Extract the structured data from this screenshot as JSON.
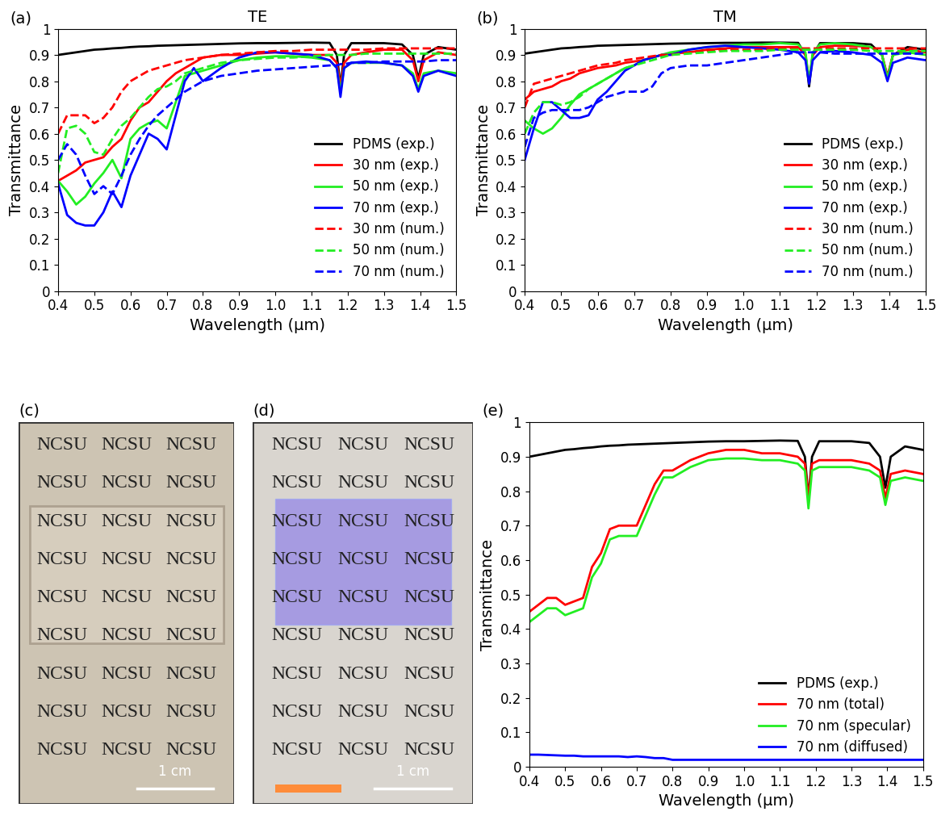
{
  "chart_data": [
    {
      "type": "line",
      "panel_label": "(a)",
      "title": "TE",
      "x_label": "Wavelength (μm)",
      "y_label": "Transmittance",
      "xlim": [
        0.4,
        1.5
      ],
      "ylim": [
        0,
        1
      ],
      "xticks": [
        0.4,
        0.5,
        0.6,
        0.7,
        0.8,
        0.9,
        1.0,
        1.1,
        1.2,
        1.3,
        1.4,
        1.5
      ],
      "yticks": [
        0,
        0.1,
        0.2,
        0.3,
        0.4,
        0.5,
        0.6,
        0.7,
        0.8,
        0.9,
        1
      ],
      "legend": "lower right",
      "x": [
        0.4,
        0.425,
        0.45,
        0.475,
        0.5,
        0.525,
        0.55,
        0.575,
        0.6,
        0.625,
        0.65,
        0.675,
        0.7,
        0.725,
        0.75,
        0.775,
        0.8,
        0.85,
        0.9,
        0.95,
        1.0,
        1.05,
        1.1,
        1.15,
        1.17,
        1.18,
        1.19,
        1.21,
        1.25,
        1.3,
        1.35,
        1.38,
        1.395,
        1.41,
        1.45,
        1.5
      ],
      "series": [
        {
          "name": "PDMS (exp.)",
          "color": "#000000",
          "line_style": "solid",
          "values": [
            0.9,
            0.905,
            0.91,
            0.915,
            0.92,
            0.922,
            0.925,
            0.927,
            0.93,
            0.932,
            0.933,
            0.935,
            0.936,
            0.937,
            0.938,
            0.939,
            0.94,
            0.942,
            0.944,
            0.945,
            0.945,
            0.946,
            0.947,
            0.946,
            0.9,
            0.78,
            0.9,
            0.945,
            0.945,
            0.945,
            0.94,
            0.9,
            0.81,
            0.9,
            0.93,
            0.92
          ]
        },
        {
          "name": "30 nm (exp.)",
          "color": "#ff0000",
          "line_style": "solid",
          "values": [
            0.42,
            0.44,
            0.46,
            0.49,
            0.5,
            0.51,
            0.55,
            0.58,
            0.65,
            0.7,
            0.72,
            0.76,
            0.8,
            0.83,
            0.85,
            0.87,
            0.89,
            0.9,
            0.9,
            0.905,
            0.91,
            0.905,
            0.9,
            0.9,
            0.87,
            0.78,
            0.87,
            0.9,
            0.91,
            0.92,
            0.92,
            0.88,
            0.8,
            0.88,
            0.91,
            0.9
          ]
        },
        {
          "name": "50 nm (exp.)",
          "color": "#22ee22",
          "line_style": "solid",
          "values": [
            0.42,
            0.38,
            0.33,
            0.36,
            0.41,
            0.45,
            0.5,
            0.43,
            0.58,
            0.62,
            0.64,
            0.65,
            0.62,
            0.72,
            0.82,
            0.83,
            0.84,
            0.86,
            0.88,
            0.89,
            0.895,
            0.895,
            0.89,
            0.88,
            0.85,
            0.76,
            0.85,
            0.87,
            0.87,
            0.87,
            0.86,
            0.83,
            0.77,
            0.83,
            0.84,
            0.83
          ]
        },
        {
          "name": "70 nm (exp.)",
          "color": "#0000ff",
          "line_style": "solid",
          "values": [
            0.41,
            0.29,
            0.26,
            0.25,
            0.25,
            0.3,
            0.38,
            0.32,
            0.44,
            0.52,
            0.6,
            0.58,
            0.54,
            0.67,
            0.8,
            0.85,
            0.8,
            0.85,
            0.89,
            0.91,
            0.91,
            0.905,
            0.9,
            0.88,
            0.85,
            0.74,
            0.85,
            0.87,
            0.875,
            0.87,
            0.86,
            0.82,
            0.76,
            0.82,
            0.84,
            0.82
          ]
        },
        {
          "name": "30 nm (num.)",
          "color": "#ff0000",
          "line_style": "dashed",
          "values": [
            0.6,
            0.67,
            0.67,
            0.67,
            0.64,
            0.66,
            0.7,
            0.76,
            0.8,
            0.82,
            0.84,
            0.85,
            0.86,
            0.87,
            0.88,
            0.885,
            0.89,
            0.9,
            0.905,
            0.91,
            0.915,
            0.915,
            0.92,
            0.92,
            0.92,
            0.92,
            0.92,
            0.92,
            0.92,
            0.925,
            0.925,
            0.925,
            0.925,
            0.925,
            0.925,
            0.925
          ]
        },
        {
          "name": "50 nm (num.)",
          "color": "#22ee22",
          "line_style": "dashed",
          "values": [
            0.45,
            0.62,
            0.63,
            0.6,
            0.53,
            0.52,
            0.58,
            0.63,
            0.66,
            0.7,
            0.74,
            0.77,
            0.78,
            0.8,
            0.83,
            0.84,
            0.85,
            0.87,
            0.88,
            0.885,
            0.89,
            0.89,
            0.895,
            0.9,
            0.9,
            0.9,
            0.9,
            0.9,
            0.905,
            0.905,
            0.905,
            0.905,
            0.905,
            0.905,
            0.905,
            0.905
          ]
        },
        {
          "name": "70 nm (num.)",
          "color": "#0000ff",
          "line_style": "dashed",
          "values": [
            0.5,
            0.56,
            0.52,
            0.44,
            0.37,
            0.4,
            0.37,
            0.44,
            0.52,
            0.58,
            0.63,
            0.67,
            0.7,
            0.73,
            0.76,
            0.78,
            0.8,
            0.82,
            0.83,
            0.84,
            0.845,
            0.85,
            0.855,
            0.86,
            0.86,
            0.865,
            0.865,
            0.87,
            0.87,
            0.875,
            0.875,
            0.875,
            0.875,
            0.875,
            0.88,
            0.88
          ]
        }
      ]
    },
    {
      "type": "line",
      "panel_label": "(b)",
      "title": "TM",
      "x_label": "Wavelength (μm)",
      "y_label": "Transmittance",
      "xlim": [
        0.4,
        1.5
      ],
      "ylim": [
        0,
        1
      ],
      "xticks": [
        0.4,
        0.5,
        0.6,
        0.7,
        0.8,
        0.9,
        1.0,
        1.1,
        1.2,
        1.3,
        1.4,
        1.5
      ],
      "yticks": [
        0,
        0.1,
        0.2,
        0.3,
        0.4,
        0.5,
        0.6,
        0.7,
        0.8,
        0.9,
        1
      ],
      "legend": "lower right",
      "x": [
        0.4,
        0.425,
        0.45,
        0.475,
        0.5,
        0.525,
        0.55,
        0.575,
        0.6,
        0.625,
        0.65,
        0.675,
        0.7,
        0.725,
        0.75,
        0.775,
        0.8,
        0.85,
        0.9,
        0.95,
        1.0,
        1.05,
        1.1,
        1.15,
        1.17,
        1.18,
        1.19,
        1.21,
        1.25,
        1.3,
        1.35,
        1.38,
        1.395,
        1.41,
        1.45,
        1.5
      ],
      "series": [
        {
          "name": "PDMS (exp.)",
          "color": "#000000",
          "line_style": "solid",
          "values": [
            0.905,
            0.91,
            0.915,
            0.92,
            0.925,
            0.927,
            0.93,
            0.932,
            0.935,
            0.936,
            0.937,
            0.938,
            0.939,
            0.94,
            0.941,
            0.942,
            0.943,
            0.944,
            0.945,
            0.946,
            0.946,
            0.947,
            0.947,
            0.946,
            0.9,
            0.78,
            0.9,
            0.945,
            0.945,
            0.945,
            0.94,
            0.9,
            0.81,
            0.9,
            0.93,
            0.92
          ]
        },
        {
          "name": "30 nm (exp.)",
          "color": "#ff0000",
          "line_style": "solid",
          "values": [
            0.73,
            0.76,
            0.77,
            0.78,
            0.8,
            0.81,
            0.83,
            0.84,
            0.85,
            0.855,
            0.86,
            0.87,
            0.875,
            0.88,
            0.89,
            0.9,
            0.905,
            0.91,
            0.92,
            0.925,
            0.93,
            0.93,
            0.93,
            0.93,
            0.9,
            0.8,
            0.9,
            0.93,
            0.935,
            0.935,
            0.93,
            0.9,
            0.82,
            0.9,
            0.92,
            0.91
          ]
        },
        {
          "name": "50 nm (exp.)",
          "color": "#22ee22",
          "line_style": "solid",
          "values": [
            0.65,
            0.62,
            0.6,
            0.62,
            0.66,
            0.71,
            0.75,
            0.77,
            0.79,
            0.81,
            0.83,
            0.85,
            0.86,
            0.88,
            0.89,
            0.9,
            0.91,
            0.92,
            0.93,
            0.935,
            0.94,
            0.94,
            0.945,
            0.94,
            0.91,
            0.8,
            0.91,
            0.94,
            0.945,
            0.94,
            0.93,
            0.9,
            0.81,
            0.9,
            0.91,
            0.9
          ]
        },
        {
          "name": "70 nm (exp.)",
          "color": "#0000ff",
          "line_style": "solid",
          "values": [
            0.5,
            0.62,
            0.72,
            0.72,
            0.69,
            0.66,
            0.66,
            0.67,
            0.73,
            0.76,
            0.8,
            0.84,
            0.86,
            0.88,
            0.89,
            0.9,
            0.9,
            0.92,
            0.93,
            0.935,
            0.93,
            0.925,
            0.92,
            0.91,
            0.88,
            0.79,
            0.88,
            0.91,
            0.915,
            0.91,
            0.9,
            0.87,
            0.8,
            0.87,
            0.89,
            0.88
          ]
        },
        {
          "name": "30 nm (num.)",
          "color": "#ff0000",
          "line_style": "dashed",
          "values": [
            0.7,
            0.79,
            0.8,
            0.81,
            0.82,
            0.83,
            0.84,
            0.85,
            0.86,
            0.865,
            0.87,
            0.88,
            0.885,
            0.89,
            0.895,
            0.9,
            0.9,
            0.91,
            0.915,
            0.92,
            0.92,
            0.92,
            0.925,
            0.925,
            0.925,
            0.925,
            0.925,
            0.925,
            0.925,
            0.925,
            0.925,
            0.925,
            0.925,
            0.925,
            0.925,
            0.925
          ]
        },
        {
          "name": "50 nm (num.)",
          "color": "#22ee22",
          "line_style": "dashed",
          "values": [
            0.6,
            0.68,
            0.72,
            0.72,
            0.71,
            0.72,
            0.74,
            0.77,
            0.79,
            0.81,
            0.83,
            0.85,
            0.86,
            0.87,
            0.88,
            0.89,
            0.9,
            0.905,
            0.91,
            0.915,
            0.915,
            0.915,
            0.92,
            0.92,
            0.92,
            0.92,
            0.92,
            0.92,
            0.92,
            0.92,
            0.915,
            0.915,
            0.915,
            0.915,
            0.915,
            0.915
          ]
        },
        {
          "name": "70 nm (num.)",
          "color": "#0000ff",
          "line_style": "dashed",
          "values": [
            0.55,
            0.66,
            0.68,
            0.69,
            0.69,
            0.69,
            0.69,
            0.7,
            0.72,
            0.74,
            0.75,
            0.76,
            0.76,
            0.76,
            0.78,
            0.83,
            0.85,
            0.86,
            0.86,
            0.87,
            0.88,
            0.89,
            0.9,
            0.91,
            0.91,
            0.91,
            0.91,
            0.91,
            0.905,
            0.905,
            0.905,
            0.905,
            0.905,
            0.905,
            0.905,
            0.905
          ]
        }
      ]
    },
    {
      "type": "line",
      "panel_label": "(e)",
      "x_label": "Wavelength (μm)",
      "y_label": "Transmittance",
      "xlim": [
        0.4,
        1.5
      ],
      "ylim": [
        0,
        1
      ],
      "xticks": [
        0.4,
        0.5,
        0.6,
        0.7,
        0.8,
        0.9,
        1.0,
        1.1,
        1.2,
        1.3,
        1.4,
        1.5
      ],
      "yticks": [
        0,
        0.1,
        0.2,
        0.3,
        0.4,
        0.5,
        0.6,
        0.7,
        0.8,
        0.9,
        1
      ],
      "legend": "lower right",
      "x": [
        0.4,
        0.425,
        0.45,
        0.475,
        0.5,
        0.525,
        0.55,
        0.575,
        0.6,
        0.625,
        0.65,
        0.675,
        0.7,
        0.725,
        0.75,
        0.775,
        0.8,
        0.85,
        0.9,
        0.95,
        1.0,
        1.05,
        1.1,
        1.15,
        1.17,
        1.18,
        1.19,
        1.21,
        1.25,
        1.3,
        1.35,
        1.38,
        1.395,
        1.41,
        1.45,
        1.5
      ],
      "series": [
        {
          "name": "PDMS (exp.)",
          "color": "#000000",
          "line_style": "solid",
          "values": [
            0.9,
            0.905,
            0.91,
            0.915,
            0.92,
            0.922,
            0.925,
            0.927,
            0.93,
            0.932,
            0.933,
            0.935,
            0.936,
            0.937,
            0.938,
            0.939,
            0.94,
            0.942,
            0.944,
            0.945,
            0.945,
            0.946,
            0.947,
            0.946,
            0.9,
            0.78,
            0.9,
            0.945,
            0.945,
            0.945,
            0.94,
            0.9,
            0.81,
            0.9,
            0.93,
            0.92
          ]
        },
        {
          "name": "70 nm (total)",
          "color": "#ff0000",
          "line_style": "solid",
          "values": [
            0.45,
            0.47,
            0.49,
            0.49,
            0.47,
            0.48,
            0.49,
            0.58,
            0.62,
            0.69,
            0.7,
            0.7,
            0.7,
            0.76,
            0.82,
            0.86,
            0.86,
            0.89,
            0.91,
            0.92,
            0.92,
            0.91,
            0.91,
            0.9,
            0.88,
            0.78,
            0.88,
            0.89,
            0.89,
            0.89,
            0.88,
            0.86,
            0.78,
            0.85,
            0.86,
            0.85
          ]
        },
        {
          "name": "70 nm (specular)",
          "color": "#22ee22",
          "line_style": "solid",
          "values": [
            0.42,
            0.44,
            0.46,
            0.46,
            0.44,
            0.45,
            0.46,
            0.55,
            0.59,
            0.66,
            0.67,
            0.67,
            0.67,
            0.73,
            0.79,
            0.84,
            0.84,
            0.87,
            0.89,
            0.895,
            0.895,
            0.89,
            0.89,
            0.88,
            0.86,
            0.75,
            0.86,
            0.87,
            0.87,
            0.87,
            0.86,
            0.84,
            0.76,
            0.83,
            0.84,
            0.83
          ]
        },
        {
          "name": "70 nm (diffused)",
          "color": "#0000ff",
          "line_style": "solid",
          "values": [
            0.035,
            0.035,
            0.034,
            0.033,
            0.032,
            0.032,
            0.03,
            0.03,
            0.03,
            0.03,
            0.03,
            0.028,
            0.03,
            0.028,
            0.025,
            0.025,
            0.02,
            0.02,
            0.02,
            0.02,
            0.02,
            0.02,
            0.02,
            0.02,
            0.02,
            0.02,
            0.02,
            0.02,
            0.02,
            0.02,
            0.02,
            0.02,
            0.02,
            0.02,
            0.02,
            0.02
          ]
        }
      ]
    }
  ],
  "photos": [
    {
      "panel_label": "(c)",
      "text": "NCSU",
      "scale_bar": "1 cm"
    },
    {
      "panel_label": "(d)",
      "text": "NCSU",
      "scale_bar": "1 cm"
    }
  ]
}
